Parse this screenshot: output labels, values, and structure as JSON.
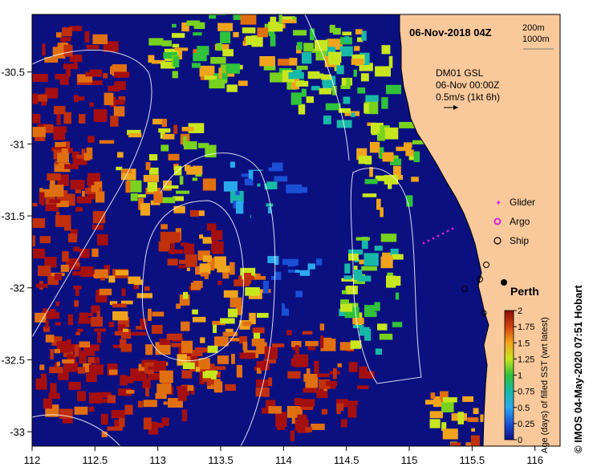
{
  "map": {
    "date_label": "06-Nov-2018 04Z",
    "depth_labels": [
      "200m",
      "1000m"
    ],
    "current_info": [
      "DM01 GSL",
      "06-Nov 00:00Z",
      "0.5m/s (1kt 6h)"
    ],
    "legend_items": [
      {
        "label": "Glider",
        "symbol": "glider-symbol"
      },
      {
        "label": "Argo",
        "symbol": "argo-symbol"
      },
      {
        "label": "Ship",
        "symbol": "ship-symbol"
      }
    ],
    "city_label": "Perth",
    "credit": "© IMOS 04-May-2020 07:51 Hobart",
    "colors": {
      "land": "#f9c99b",
      "deep_blue": "#0b1080",
      "dark_red": "#a50f0f"
    }
  },
  "axes": {
    "x_ticks": [
      "112",
      "112.5",
      "113",
      "113.5",
      "114",
      "114.5",
      "115",
      "115.5",
      "116"
    ],
    "y_ticks": [
      "-30.5",
      "-31",
      "-31.5",
      "-32",
      "-32.5",
      "-33"
    ],
    "x_range": [
      112,
      116.2
    ],
    "y_range": [
      -33.1,
      -30.1
    ]
  },
  "colorbar": {
    "label": "Age (days) of filled SST (wrt latest)",
    "ticks": [
      "2",
      "1.75",
      "1.5",
      "1.25",
      "1",
      "0.75",
      "0.5",
      "0.25",
      "0"
    ],
    "range": [
      0,
      2
    ]
  }
}
